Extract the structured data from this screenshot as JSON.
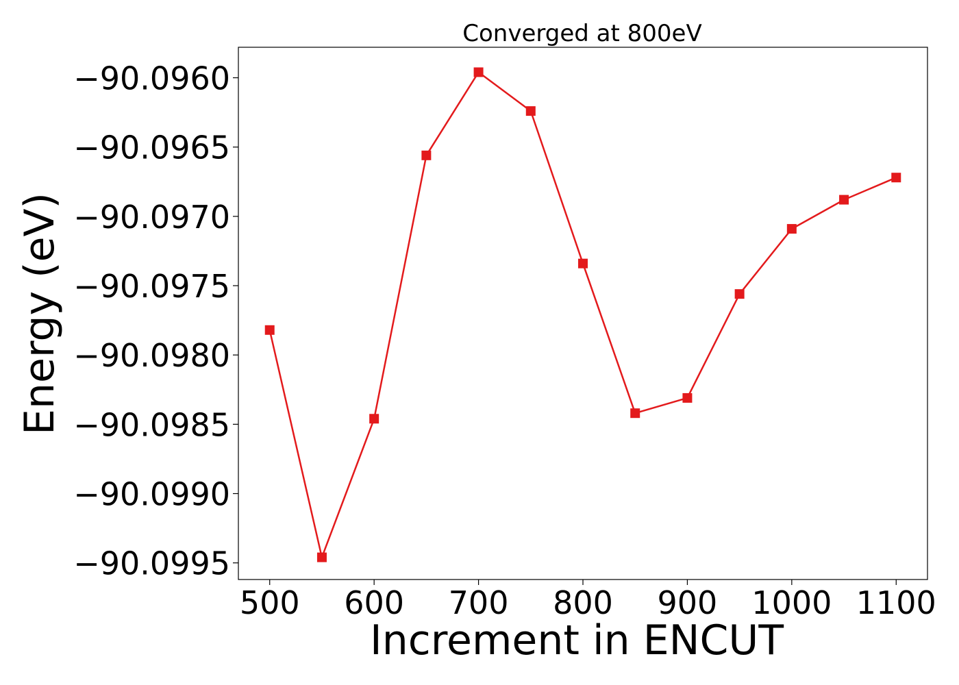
{
  "chart_data": {
    "type": "line",
    "title": "Converged at 800eV",
    "xlabel": "Increment in ENCUT",
    "ylabel": "Energy (eV)",
    "xlim": [
      470,
      1130
    ],
    "ylim": [
      -90.09962,
      -90.09578
    ],
    "xticks": [
      500,
      600,
      700,
      800,
      900,
      1000,
      1100
    ],
    "xtick_labels": [
      "500",
      "600",
      "700",
      "800",
      "900",
      "1000",
      "1100"
    ],
    "yticks": [
      -90.096,
      -90.0965,
      -90.097,
      -90.0975,
      -90.098,
      -90.0985,
      -90.099,
      -90.0995
    ],
    "ytick_labels": [
      "−90.0960",
      "−90.0965",
      "−90.0970",
      "−90.0975",
      "−90.0980",
      "−90.0985",
      "−90.0990",
      "−90.0995"
    ],
    "grid": false,
    "legend": "none",
    "series": [
      {
        "color": "#e31a1c",
        "marker": "square",
        "x": [
          500,
          550,
          600,
          650,
          700,
          750,
          800,
          850,
          900,
          950,
          1000,
          1050,
          1100
        ],
        "y": [
          -90.09782,
          -90.09946,
          -90.09846,
          -90.09656,
          -90.09596,
          -90.09624,
          -90.09734,
          -90.09842,
          -90.09831,
          -90.09756,
          -90.09709,
          -90.09688,
          -90.09672
        ]
      }
    ]
  }
}
